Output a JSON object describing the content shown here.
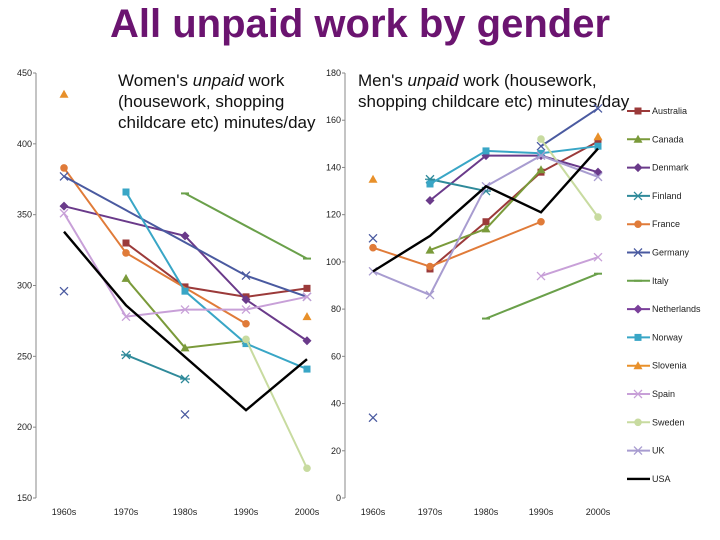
{
  "title": "All unpaid work by gender",
  "chart_data": [
    {
      "id": "women",
      "type": "line",
      "annotation": {
        "prefix": "Women's ",
        "italic": "unpaid",
        "suffix": " work (housework, shopping childcare etc) minutes/day"
      },
      "categories": [
        "1960s",
        "1970s",
        "1980s",
        "1990s",
        "2000s"
      ],
      "ylim": [
        150,
        450
      ],
      "yticks": [
        150,
        200,
        250,
        300,
        350,
        400,
        450
      ],
      "series": [
        {
          "name": "Australia",
          "color": "#9b3a3a",
          "marker": "square",
          "values": [
            null,
            330,
            299,
            292,
            298
          ]
        },
        {
          "name": "Canada",
          "color": "#7a9a3a",
          "marker": "triangle",
          "values": [
            null,
            305,
            256,
            261,
            null
          ]
        },
        {
          "name": "Denmark",
          "color": "#6a3a8a",
          "marker": "diamond",
          "values": [
            356,
            null,
            335,
            290,
            261
          ]
        },
        {
          "name": "Finland",
          "color": "#2f8a9a",
          "marker": "star",
          "values": [
            null,
            251,
            234,
            null,
            null
          ]
        },
        {
          "name": "France",
          "color": "#e07b39",
          "marker": "circle",
          "values": [
            383,
            323,
            null,
            273,
            null
          ]
        },
        {
          "name": "Germany",
          "color": "#4a5aa0",
          "marker": "x",
          "values": [
            377,
            null,
            null,
            307,
            292
          ]
        },
        {
          "name": "Italy",
          "color": "#6aa04a",
          "marker": "dash",
          "values": [
            null,
            null,
            365,
            null,
            319
          ]
        },
        {
          "name": "Netherlands",
          "color": "#7a3f9a",
          "marker": "diamond",
          "values": [
            null,
            null,
            null,
            null,
            null
          ]
        },
        {
          "name": "Norway",
          "color": "#39a6c6",
          "marker": "square",
          "values": [
            null,
            366,
            296,
            259,
            241
          ]
        },
        {
          "name": "Slovenia",
          "color": "#e8902a",
          "marker": "triangle",
          "values": [
            null,
            null,
            null,
            null,
            278
          ]
        },
        {
          "name": "Spain",
          "color": "#c8a0d8",
          "marker": "x",
          "values": [
            351,
            278,
            283,
            283,
            292
          ]
        },
        {
          "name": "Sweden",
          "color": "#c8dba0",
          "marker": "circle",
          "values": [
            null,
            null,
            null,
            262,
            171
          ]
        },
        {
          "name": "UK",
          "color": "#a89cd0",
          "marker": "x",
          "values": [
            null,
            null,
            null,
            null,
            null
          ]
        },
        {
          "name": "USA",
          "color": "#000000",
          "marker": "none",
          "values": [
            338,
            286,
            null,
            212,
            248
          ]
        }
      ],
      "extra_points": [
        {
          "color": "#e8902a",
          "marker": "triangle",
          "cat": 0,
          "y": 435
        },
        {
          "color": "#4a5aa0",
          "marker": "x",
          "cat": 0,
          "y": 296
        },
        {
          "color": "#4a5aa0",
          "marker": "x",
          "cat": 2,
          "y": 209
        }
      ]
    },
    {
      "id": "men",
      "type": "line",
      "annotation": {
        "prefix": "Men's ",
        "italic": "unpaid",
        "suffix": " work (housework, shopping childcare etc) minutes/day"
      },
      "categories": [
        "1960s",
        "1970s",
        "1980s",
        "1990s",
        "2000s"
      ],
      "ylim": [
        0,
        180
      ],
      "yticks": [
        0,
        20,
        40,
        60,
        80,
        100,
        120,
        140,
        160,
        180
      ],
      "series": [
        {
          "name": "Australia",
          "color": "#9b3a3a",
          "marker": "square",
          "values": [
            null,
            97,
            117,
            138,
            151
          ]
        },
        {
          "name": "Canada",
          "color": "#7a9a3a",
          "marker": "triangle",
          "values": [
            null,
            105,
            114,
            139,
            null
          ]
        },
        {
          "name": "Denmark",
          "color": "#6a3a8a",
          "marker": "diamond",
          "values": [
            null,
            126,
            145,
            145,
            138
          ]
        },
        {
          "name": "Finland",
          "color": "#2f8a9a",
          "marker": "star",
          "values": [
            null,
            135,
            130,
            null,
            null
          ]
        },
        {
          "name": "France",
          "color": "#e07b39",
          "marker": "circle",
          "values": [
            106,
            98,
            null,
            117,
            null
          ]
        },
        {
          "name": "Germany",
          "color": "#4a5aa0",
          "marker": "x",
          "values": [
            null,
            null,
            null,
            149,
            165
          ]
        },
        {
          "name": "Italy",
          "color": "#6aa04a",
          "marker": "dash",
          "values": [
            null,
            null,
            76,
            null,
            95
          ]
        },
        {
          "name": "Netherlands",
          "color": "#7a3f9a",
          "marker": "diamond",
          "values": [
            null,
            null,
            null,
            null,
            null
          ]
        },
        {
          "name": "Norway",
          "color": "#39a6c6",
          "marker": "square",
          "values": [
            null,
            133,
            147,
            146,
            149
          ]
        },
        {
          "name": "Slovenia",
          "color": "#e8902a",
          "marker": "triangle",
          "values": [
            null,
            null,
            null,
            null,
            153
          ]
        },
        {
          "name": "Spain",
          "color": "#c8a0d8",
          "marker": "x",
          "values": [
            null,
            null,
            null,
            94,
            102
          ]
        },
        {
          "name": "Sweden",
          "color": "#c8dba0",
          "marker": "circle",
          "values": [
            null,
            null,
            null,
            152,
            119
          ]
        },
        {
          "name": "UK",
          "color": "#a89cd0",
          "marker": "x",
          "values": [
            96,
            86,
            132,
            145,
            136
          ]
        },
        {
          "name": "USA",
          "color": "#000000",
          "marker": "none",
          "values": [
            96,
            111,
            132,
            121,
            148
          ]
        }
      ],
      "extra_points": [
        {
          "color": "#e8902a",
          "marker": "triangle",
          "cat": 0,
          "y": 135
        },
        {
          "color": "#4a5aa0",
          "marker": "x",
          "cat": 0,
          "y": 110
        },
        {
          "color": "#4a5aa0",
          "marker": "x",
          "cat": 0,
          "y": 34
        }
      ]
    }
  ],
  "legend": [
    "Australia",
    "Canada",
    "Denmark",
    "Finland",
    "France",
    "Germany",
    "Italy",
    "Netherlands",
    "Norway",
    "Slovenia",
    "Spain",
    "Sweden",
    "UK",
    "USA"
  ]
}
